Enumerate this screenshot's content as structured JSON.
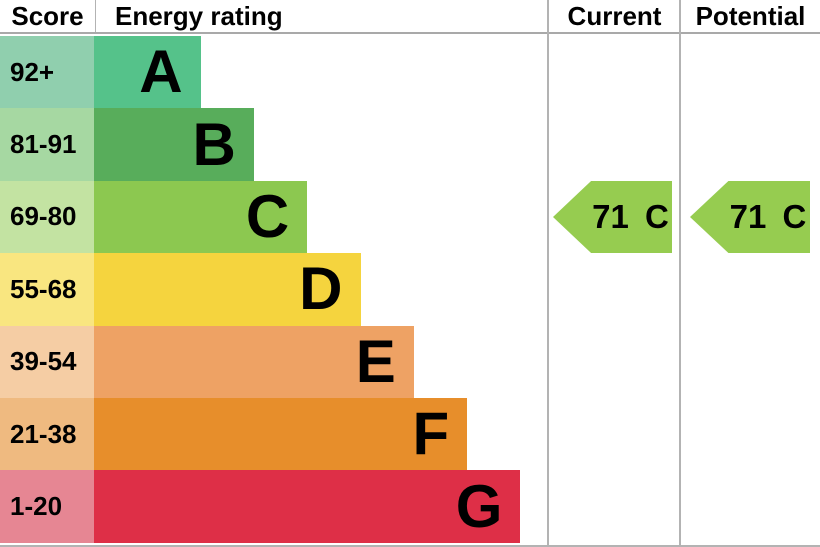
{
  "header": {
    "score": "Score",
    "energy_rating": "Energy rating",
    "current": "Current",
    "potential": "Potential"
  },
  "theme": {
    "divider_color": "#b3b3b3",
    "header_underline_color": "#a9a9a9",
    "text_color": "#000000",
    "background": "#ffffff"
  },
  "chart_data": {
    "type": "bar",
    "orientation": "horizontal",
    "title": "Energy rating",
    "columns": [
      "Score",
      "Energy rating",
      "Current",
      "Potential"
    ],
    "legend_position": "none",
    "grid": false,
    "bands": [
      {
        "rating": "A",
        "score_range": "92+",
        "relative_length": 2,
        "bar_color": "#55c28a",
        "score_color": "#90cfae"
      },
      {
        "rating": "B",
        "score_range": "81-91",
        "relative_length": 3,
        "bar_color": "#58ad5b",
        "score_color": "#a6d8a2"
      },
      {
        "rating": "C",
        "score_range": "69-80",
        "relative_length": 4,
        "bar_color": "#8cc850",
        "score_color": "#c3e3a2"
      },
      {
        "rating": "D",
        "score_range": "55-68",
        "relative_length": 5,
        "bar_color": "#f5d43e",
        "score_color": "#f9e680"
      },
      {
        "rating": "E",
        "score_range": "39-54",
        "relative_length": 6,
        "bar_color": "#eea264",
        "score_color": "#f5cda4"
      },
      {
        "rating": "F",
        "score_range": "21-38",
        "relative_length": 7,
        "bar_color": "#e78e2b",
        "score_color": "#efba80"
      },
      {
        "rating": "G",
        "score_range": "1-20",
        "relative_length": 8,
        "bar_color": "#de2f47",
        "score_color": "#e68693"
      }
    ],
    "markers": [
      {
        "name": "Current",
        "value": 71,
        "rating": "C",
        "label": "71 C",
        "band_index": 2,
        "color": "#96cc50"
      },
      {
        "name": "Potential",
        "value": 71,
        "rating": "C",
        "label": "71 C",
        "band_index": 2,
        "color": "#96cc50"
      }
    ]
  }
}
